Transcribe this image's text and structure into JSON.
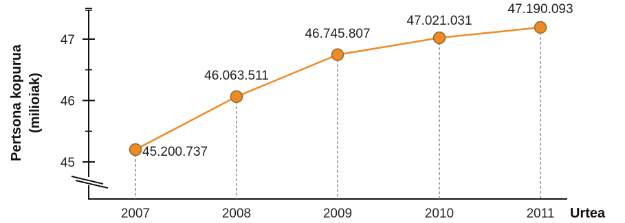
{
  "chart_data": {
    "type": "line",
    "x": [
      "2007",
      "2008",
      "2009",
      "2010",
      "2011"
    ],
    "series": [
      {
        "values": [
          45.200737,
          46.063511,
          46.745807,
          47.021031,
          47.190093
        ]
      }
    ],
    "data_labels": [
      "45.200.737",
      "46.063.511",
      "46.745.807",
      "47.021.031",
      "47.190.093"
    ],
    "y_ticks": [
      "45",
      "46",
      "47"
    ],
    "ylim": [
      44.9,
      47.5
    ],
    "y_axis_break": true,
    "ylabel_line1": "Pertsona kopurua",
    "ylabel_line2": "(milioiak)",
    "xlabel": "Urtea",
    "grid": false,
    "colors": {
      "line": "#f08a24",
      "marker": "#f08a24",
      "marker_edge": "#8a6a2a",
      "drop_line": "#888888",
      "axis": "#111111"
    }
  }
}
